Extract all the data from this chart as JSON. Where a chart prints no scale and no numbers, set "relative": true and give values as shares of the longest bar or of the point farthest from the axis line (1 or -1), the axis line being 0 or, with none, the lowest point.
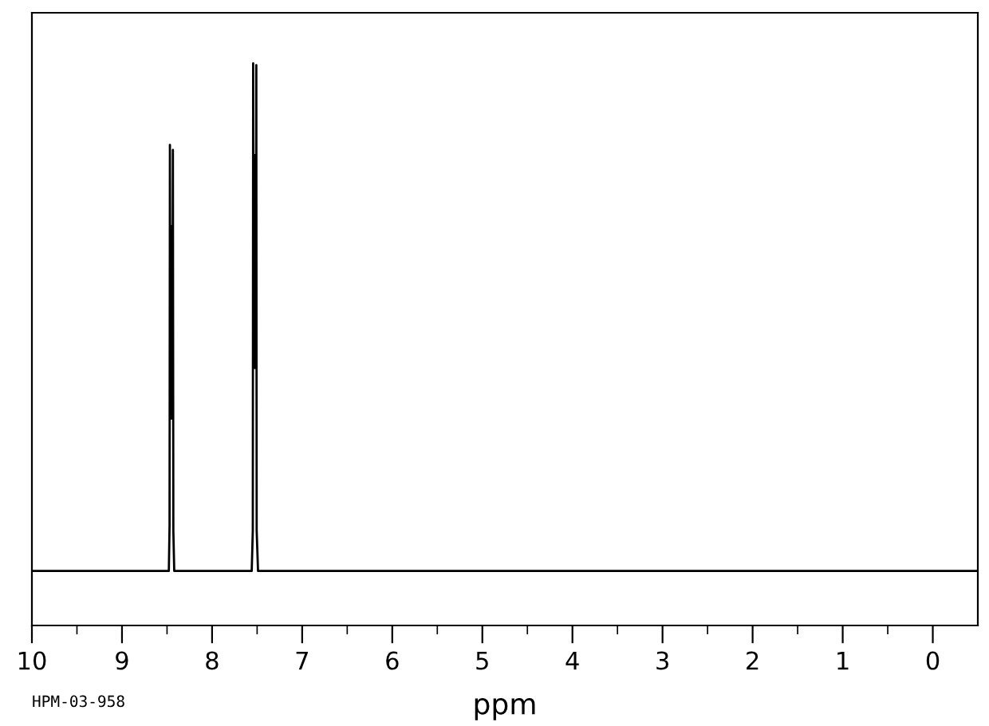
{
  "chart_data": {
    "type": "line",
    "relative": true,
    "xlabel": "ppm",
    "annotations": [
      "HPM-03-958"
    ],
    "grid": false,
    "legend": false,
    "tick_labels": "x",
    "xlim": [
      10,
      -0.5
    ],
    "xticks": [
      10,
      {
        "value": 9.5,
        "label": null
      },
      9,
      {
        "value": 8.5,
        "label": null
      },
      8,
      {
        "value": 7.5,
        "label": null
      },
      7,
      {
        "value": 6.5,
        "label": null
      },
      6,
      {
        "value": 5.5,
        "label": null
      },
      5,
      {
        "value": 4.5,
        "label": null
      },
      4,
      {
        "value": 3.5,
        "label": null
      },
      3,
      {
        "value": 2.5,
        "label": null
      },
      2,
      {
        "value": 1.5,
        "label": null
      },
      1,
      {
        "value": 0.5,
        "label": null
      },
      0
    ],
    "series": [
      {
        "color": "#000000",
        "x": [
          10,
          8.48,
          8.472,
          8.468,
          8.462,
          8.458,
          8.452,
          8.448,
          8.44,
          8.435,
          8.43,
          8.42,
          7.56,
          7.548,
          7.544,
          7.538,
          7.532,
          7.526,
          7.52,
          7.513,
          7.509,
          7.505,
          7.49,
          -0.5
        ],
        "values": [
          0.097,
          0.097,
          0.178,
          0.855,
          0.368,
          0.711,
          0.368,
          0.711,
          0.368,
          0.846,
          0.169,
          0.097,
          0.097,
          0.169,
          1.0,
          0.458,
          0.837,
          0.458,
          0.837,
          0.458,
          0.997,
          0.169,
          0.097,
          0.097
        ]
      }
    ]
  }
}
